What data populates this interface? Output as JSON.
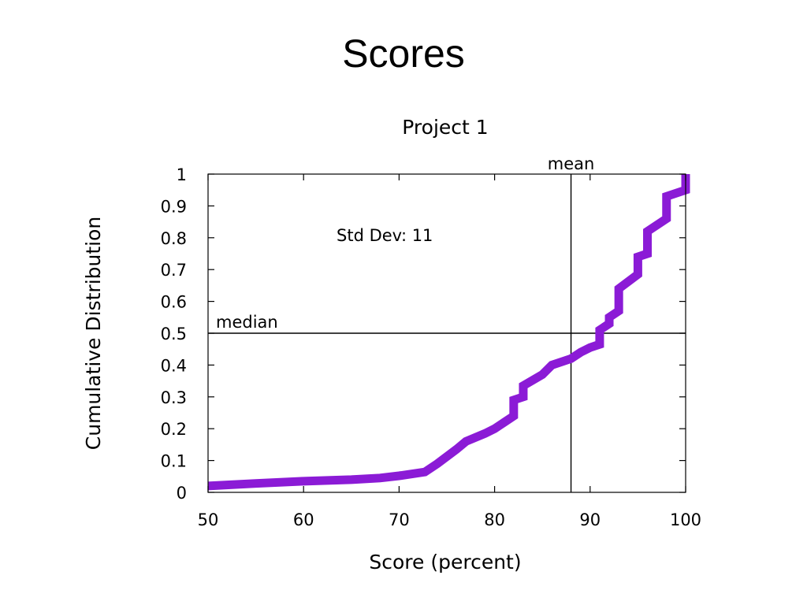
{
  "slide": {
    "title": "Scores"
  },
  "chart_data": {
    "type": "line",
    "title": "Project 1",
    "xlabel": "Score (percent)",
    "ylabel": "Cumulative Distribution",
    "xlim": [
      50,
      100
    ],
    "ylim": [
      0,
      1
    ],
    "x_ticks": [
      50,
      60,
      70,
      80,
      90,
      100
    ],
    "y_ticks": [
      0,
      0.1,
      0.2,
      0.3,
      0.4,
      0.5,
      0.6,
      0.7,
      0.8,
      0.9,
      1
    ],
    "grid": false,
    "line_color": "#8B1BD6",
    "series": [
      {
        "x": [
          50,
          55,
          60,
          65,
          68,
          70,
          72.7,
          74,
          76,
          77,
          79,
          80,
          81,
          82,
          82,
          83,
          83,
          85,
          86,
          88,
          89,
          90,
          91,
          91,
          92,
          92,
          93,
          93,
          95,
          95,
          96,
          96,
          98,
          98,
          100,
          100
        ],
        "y": [
          0.02,
          0.028,
          0.035,
          0.04,
          0.045,
          0.052,
          0.064,
          0.09,
          0.135,
          0.16,
          0.185,
          0.2,
          0.22,
          0.24,
          0.29,
          0.3,
          0.335,
          0.37,
          0.4,
          0.42,
          0.44,
          0.455,
          0.465,
          0.51,
          0.53,
          0.55,
          0.57,
          0.64,
          0.685,
          0.74,
          0.75,
          0.82,
          0.86,
          0.93,
          0.95,
          1.0
        ]
      }
    ],
    "reference_lines": {
      "mean": {
        "label": "mean",
        "x": 88
      },
      "median": {
        "label": "median",
        "y": 0.5
      }
    },
    "annotations": [
      {
        "text": "Std Dev: 11"
      }
    ]
  }
}
